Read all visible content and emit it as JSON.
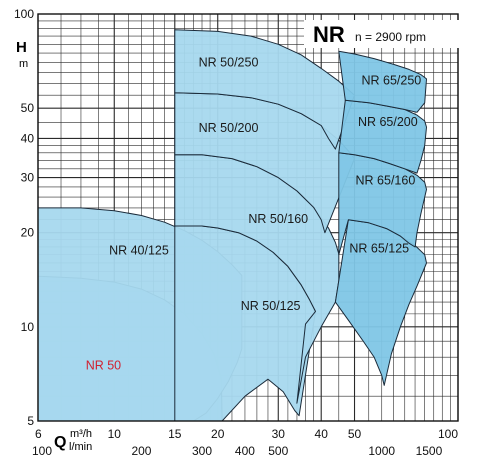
{
  "chart_data": {
    "type": "area",
    "title": "NR",
    "subtitle": "n = 2900 rpm",
    "y_axis": {
      "label": "H",
      "unit": "m",
      "scale": "log",
      "range": [
        5,
        100
      ],
      "major_ticks": [
        5,
        10,
        20,
        30,
        40,
        50,
        100
      ],
      "grid_values": [
        5,
        6,
        7,
        8,
        9,
        10,
        11,
        12,
        13,
        14,
        15,
        16,
        17,
        18,
        19,
        20,
        22,
        24,
        26,
        28,
        30,
        32,
        34,
        36,
        38,
        40,
        45,
        50,
        55,
        60,
        65,
        70,
        75,
        80,
        85,
        90,
        95,
        100
      ]
    },
    "x_axis": {
      "label": "Q",
      "scale": "log",
      "primary_unit": "m³/h",
      "primary_range": [
        6,
        100
      ],
      "primary_ticks": [
        {
          "label": "6",
          "value": 6
        },
        {
          "label": "10",
          "value": 10
        },
        {
          "label": "15",
          "value": 15
        },
        {
          "label": "20",
          "value": 20
        },
        {
          "label": "30",
          "value": 30
        },
        {
          "label": "40",
          "value": 40
        },
        {
          "label": "50",
          "value": 50
        },
        {
          "label": "100",
          "value": 100
        }
      ],
      "secondary_unit": "l/min",
      "secondary_ticks": [
        {
          "label": "100",
          "value": 100
        },
        {
          "label": "200",
          "value": 200
        },
        {
          "label": "300",
          "value": 300
        },
        {
          "label": "400",
          "value": 400
        },
        {
          "label": "500",
          "value": 500
        },
        {
          "label": "1000",
          "value": 1000
        },
        {
          "label": "1500",
          "value": 1500
        }
      ],
      "grid_values": [
        6,
        7,
        8,
        9,
        10,
        11,
        12,
        13,
        14,
        15,
        16,
        17,
        18,
        19,
        20,
        22,
        24,
        26,
        28,
        30,
        32,
        34,
        36,
        38,
        40,
        45,
        50,
        55,
        60,
        65,
        70,
        75,
        80,
        85,
        90,
        95,
        100
      ]
    },
    "series": [
      {
        "name": "NR 50",
        "label_at": [
          9.3,
          7.3
        ],
        "label_color": "red",
        "outline": [
          [
            6,
            14.5
          ],
          [
            7,
            14.4
          ],
          [
            8,
            14.3
          ],
          [
            10,
            13.9
          ],
          [
            12,
            13.2
          ],
          [
            14,
            12.2
          ],
          [
            16,
            11.0
          ],
          [
            18,
            9.5
          ],
          [
            19.5,
            8.2
          ],
          [
            20.5,
            6.8
          ],
          [
            20.6,
            5
          ]
        ],
        "lower": [
          [
            6,
            5
          ],
          [
            20.6,
            5
          ]
        ]
      },
      {
        "name": "NR 40/125",
        "label_at": [
          11.8,
          17.0
        ],
        "outline": [
          [
            6,
            24.0
          ],
          [
            8,
            24.0
          ],
          [
            10,
            23.5
          ],
          [
            12,
            22.7
          ],
          [
            14,
            21.6
          ],
          [
            16,
            20.3
          ],
          [
            18,
            18.9
          ],
          [
            20,
            17.4
          ],
          [
            22,
            15.8
          ],
          [
            23.5,
            14.6
          ]
        ],
        "lower": [
          [
            6,
            5
          ],
          [
            17,
            5
          ],
          [
            18.5,
            5.3
          ],
          [
            20,
            5.9
          ],
          [
            21.5,
            6.7
          ],
          [
            22.8,
            7.7
          ],
          [
            23.5,
            8.5
          ]
        ]
      },
      {
        "name": "NR 50/125",
        "label_at": [
          28.5,
          11.3
        ],
        "outline": [
          [
            15,
            21.0
          ],
          [
            18,
            21.0
          ],
          [
            20,
            20.7
          ],
          [
            23,
            20.0
          ],
          [
            26,
            18.8
          ],
          [
            29,
            17.3
          ],
          [
            32,
            15.6
          ],
          [
            35,
            13.6
          ],
          [
            37,
            12.2
          ],
          [
            38.5,
            11.2
          ]
        ],
        "lower": [
          [
            15,
            5
          ],
          [
            20.6,
            5
          ],
          [
            24,
            6.0
          ],
          [
            28,
            6.8
          ],
          [
            31,
            6.2
          ],
          [
            33.5,
            5.4
          ],
          [
            34.5,
            5.2
          ]
        ]
      },
      {
        "name": "NR 50/160",
        "label_at": [
          30.0,
          21.5
        ],
        "outline": [
          [
            15,
            35.5
          ],
          [
            18,
            35.5
          ],
          [
            22,
            34.5
          ],
          [
            26,
            32.5
          ],
          [
            30,
            30.0
          ],
          [
            34,
            27.2
          ],
          [
            38,
            24.1
          ],
          [
            42,
            20.7
          ],
          [
            44,
            18.6
          ],
          [
            45,
            17.1
          ]
        ],
        "lower": [
          [
            15,
            21.0
          ],
          [
            18,
            21.0
          ],
          [
            20,
            20.7
          ],
          [
            23,
            20.0
          ],
          [
            26,
            18.8
          ],
          [
            29,
            17.3
          ],
          [
            32,
            15.6
          ],
          [
            35,
            13.6
          ],
          [
            37,
            12.2
          ],
          [
            38.5,
            11.2
          ],
          [
            36,
            10.2
          ],
          [
            34,
            5.7
          ],
          [
            36,
            8.0
          ],
          [
            40,
            10.0
          ],
          [
            44,
            12.0
          ],
          [
            45,
            14.0
          ]
        ]
      },
      {
        "name": "NR 50/200",
        "label_at": [
          21.5,
          42.0
        ],
        "outline": [
          [
            15,
            56.0
          ],
          [
            20,
            55.5
          ],
          [
            25,
            54.0
          ],
          [
            30,
            51.5
          ],
          [
            35,
            48.0
          ],
          [
            40,
            44.0
          ],
          [
            45,
            39.5
          ],
          [
            48,
            36.5
          ],
          [
            50,
            34.5
          ]
        ],
        "lower": [
          [
            15,
            35.5
          ],
          [
            18,
            35.5
          ],
          [
            22,
            34.5
          ],
          [
            26,
            32.5
          ],
          [
            30,
            30.0
          ],
          [
            34,
            27.2
          ],
          [
            38,
            24.1
          ],
          [
            40,
            22.0
          ],
          [
            41,
            20.0
          ]
        ]
      },
      {
        "name": "NR 50/250",
        "label_at": [
          21.5,
          68.0
        ],
        "outline": [
          [
            15,
            89.0
          ],
          [
            20,
            88.0
          ],
          [
            25,
            85.0
          ],
          [
            30,
            80.0
          ],
          [
            35,
            74.0
          ],
          [
            40,
            67.0
          ],
          [
            45,
            61.0
          ],
          [
            50,
            55.0
          ]
        ],
        "lower": [
          [
            15,
            56.0
          ],
          [
            20,
            55.5
          ],
          [
            25,
            54.0
          ],
          [
            30,
            51.5
          ],
          [
            35,
            48.0
          ],
          [
            40,
            44.0
          ],
          [
            42,
            40.0
          ],
          [
            44,
            37.0
          ]
        ]
      },
      {
        "name": "NR 65/125",
        "label_at": [
          59.0,
          17.3
        ],
        "outline": [
          [
            48,
            22.0
          ],
          [
            55,
            21.5
          ],
          [
            62,
            20.6
          ],
          [
            68,
            19.5
          ],
          [
            75,
            18.2
          ],
          [
            80,
            17.0
          ],
          [
            81,
            16.0
          ]
        ],
        "lower": [
          [
            44,
            12.0
          ],
          [
            48,
            10.5
          ],
          [
            53,
            9.0
          ],
          [
            57,
            8.0
          ],
          [
            60,
            7.0
          ],
          [
            61,
            6.5
          ],
          [
            64,
            8.2
          ],
          [
            68,
            10.0
          ],
          [
            72,
            11.8
          ],
          [
            76,
            13.5
          ],
          [
            81,
            16.0
          ]
        ]
      },
      {
        "name": "NR 65/160",
        "label_at": [
          61.5,
          28.5
        ],
        "outline": [
          [
            45,
            36.0
          ],
          [
            50,
            35.5
          ],
          [
            57,
            34.5
          ],
          [
            63,
            33.3
          ],
          [
            70,
            32.0
          ],
          [
            76,
            30.5
          ],
          [
            80,
            29.0
          ],
          [
            81,
            27.5
          ]
        ],
        "lower": [
          [
            45,
            17.0
          ],
          [
            48,
            22.0
          ],
          [
            55,
            21.5
          ],
          [
            62,
            20.6
          ],
          [
            68,
            19.5
          ],
          [
            72,
            18.5
          ],
          [
            75,
            18.0
          ],
          [
            76,
            20.0
          ],
          [
            78,
            23.0
          ],
          [
            81,
            27.5
          ]
        ]
      },
      {
        "name": "NR 65/200",
        "label_at": [
          62.5,
          43.8
        ],
        "outline": [
          [
            47,
            53.0
          ],
          [
            55,
            52.0
          ],
          [
            62,
            50.8
          ],
          [
            70,
            49.5
          ],
          [
            76,
            47.5
          ],
          [
            80,
            45.5
          ],
          [
            81,
            43.5
          ]
        ],
        "lower": [
          [
            45,
            36.0
          ],
          [
            50,
            35.5
          ],
          [
            57,
            34.5
          ],
          [
            63,
            33.3
          ],
          [
            70,
            32.0
          ],
          [
            76,
            31.0
          ],
          [
            78,
            34.0
          ],
          [
            80,
            38.0
          ],
          [
            81,
            43.5
          ]
        ]
      },
      {
        "name": "NR 65/250",
        "label_at": [
          64.0,
          59.5
        ],
        "outline": [
          [
            45,
            76.0
          ],
          [
            50,
            74.5
          ],
          [
            57,
            72.0
          ],
          [
            65,
            69.0
          ],
          [
            72,
            66.5
          ],
          [
            78,
            64.0
          ],
          [
            81,
            62.0
          ]
        ],
        "lower": [
          [
            47,
            53.0
          ],
          [
            55,
            52.0
          ],
          [
            62,
            50.8
          ],
          [
            70,
            49.5
          ],
          [
            76,
            48.5
          ],
          [
            80,
            52.0
          ],
          [
            81,
            62.0
          ]
        ]
      }
    ],
    "colors": {
      "fill": "#a6d8ee",
      "fill_dark": "#7fc6e6",
      "stroke": "#1b2b3a",
      "grid": "#2a2a2a",
      "label_red": "#d02030"
    },
    "grid": true,
    "legend": "none"
  }
}
